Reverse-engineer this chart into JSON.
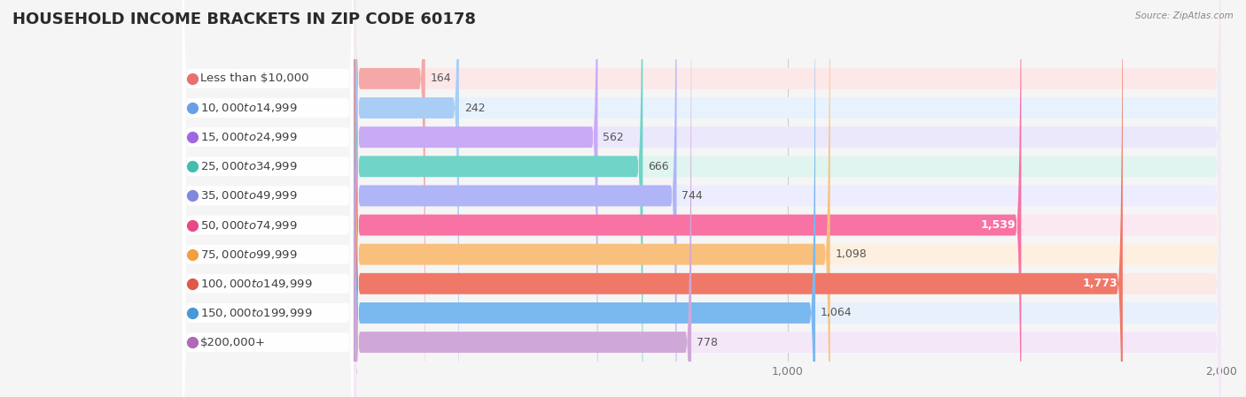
{
  "title": "HOUSEHOLD INCOME BRACKETS IN ZIP CODE 60178",
  "source": "Source: ZipAtlas.com",
  "categories": [
    "Less than $10,000",
    "$10,000 to $14,999",
    "$15,000 to $24,999",
    "$25,000 to $34,999",
    "$35,000 to $49,999",
    "$50,000 to $74,999",
    "$75,000 to $99,999",
    "$100,000 to $149,999",
    "$150,000 to $199,999",
    "$200,000+"
  ],
  "values": [
    164,
    242,
    562,
    666,
    744,
    1539,
    1098,
    1773,
    1064,
    778
  ],
  "bar_colors": [
    "#f4a8a8",
    "#a8cef5",
    "#c9aaf4",
    "#70d4c8",
    "#b0b5f8",
    "#f872a4",
    "#f8c07c",
    "#f07868",
    "#7ab8f0",
    "#d0a8d8"
  ],
  "dot_colors": [
    "#e87070",
    "#68a0e8",
    "#a068e0",
    "#40bfb0",
    "#8088e0",
    "#e84888",
    "#f0a040",
    "#e05848",
    "#4898d8",
    "#b068b8"
  ],
  "bar_bg_colors": [
    "#fce8e8",
    "#e8f2fc",
    "#ece8fc",
    "#e0f4f0",
    "#eceeff",
    "#fce8f0",
    "#fdf0e0",
    "#fce8e4",
    "#e8f0fc",
    "#f4e8f8"
  ],
  "xlim_min": 0,
  "xlim_max": 2000,
  "xticks": [
    0,
    1000,
    2000
  ],
  "bg_color": "#f5f5f5",
  "title_fontsize": 13,
  "label_fontsize": 9.5,
  "value_fontsize": 9
}
